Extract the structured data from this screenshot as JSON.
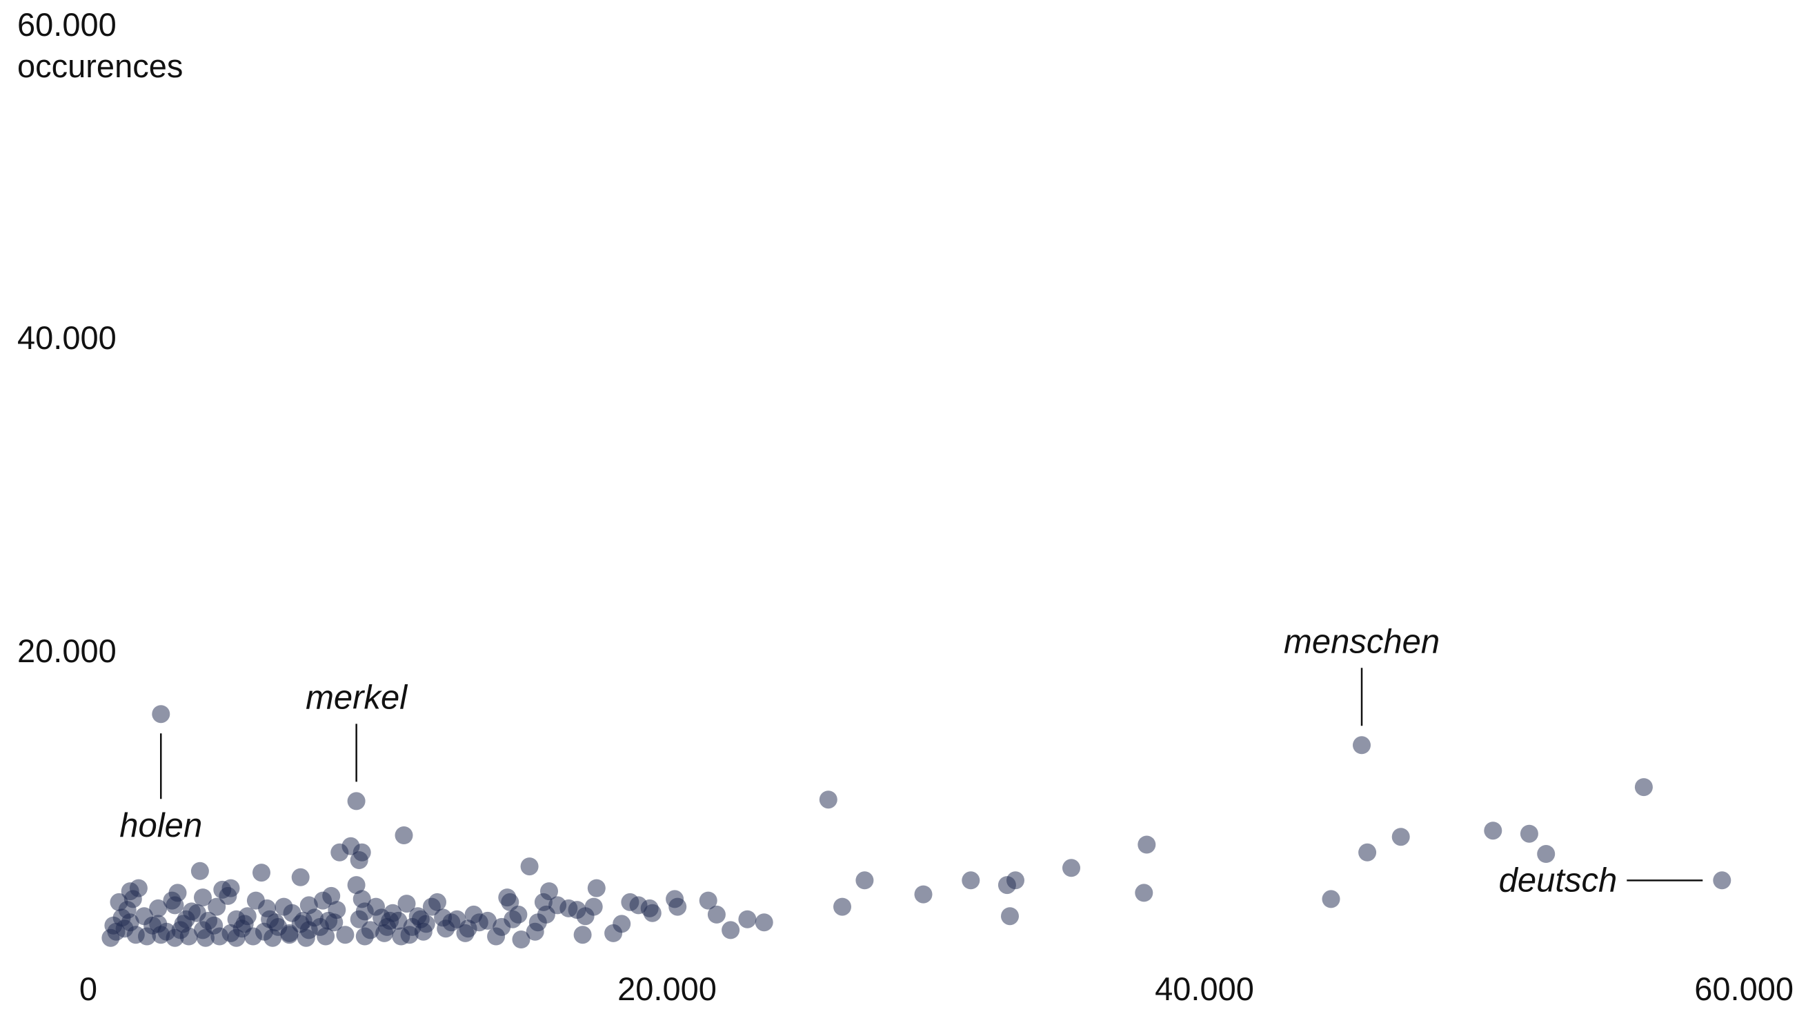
{
  "chart_data": {
    "type": "scatter",
    "title": "",
    "xlabel": "",
    "ylabel": "occurences",
    "xlim": [
      0,
      60000
    ],
    "ylim": [
      0,
      60000
    ],
    "x_ticks": [
      "0",
      "20.000",
      "40.000",
      "60.000"
    ],
    "y_ticks": [
      "20.000",
      "40.000",
      "60.000"
    ],
    "grid": false,
    "color": "#1f2a4f",
    "annotations": [
      {
        "label": "holen",
        "x": 2600,
        "y": 15700
      },
      {
        "label": "merkel",
        "x": 9600,
        "y": 10100
      },
      {
        "label": "menschen",
        "x": 45600,
        "y": 13700
      },
      {
        "label": "deutsch",
        "x": 58500,
        "y": 5000
      }
    ],
    "points": [
      [
        2600,
        15700
      ],
      [
        9600,
        10100
      ],
      [
        45600,
        13700
      ],
      [
        58500,
        5000
      ],
      [
        55700,
        11000
      ],
      [
        26500,
        10200
      ],
      [
        45800,
        6800
      ],
      [
        47000,
        7800
      ],
      [
        50300,
        8200
      ],
      [
        51600,
        8000
      ],
      [
        52200,
        6700
      ],
      [
        44500,
        3800
      ],
      [
        37900,
        7300
      ],
      [
        37800,
        4200
      ],
      [
        35200,
        5800
      ],
      [
        33200,
        5000
      ],
      [
        32900,
        4700
      ],
      [
        33000,
        2700
      ],
      [
        31600,
        5000
      ],
      [
        29900,
        4100
      ],
      [
        27800,
        5000
      ],
      [
        27000,
        3300
      ],
      [
        24200,
        2300
      ],
      [
        23600,
        2500
      ],
      [
        23000,
        1800
      ],
      [
        22200,
        3700
      ],
      [
        22500,
        2800
      ],
      [
        21000,
        3800
      ],
      [
        21100,
        3300
      ],
      [
        20100,
        3200
      ],
      [
        20200,
        2900
      ],
      [
        19400,
        3600
      ],
      [
        19700,
        3400
      ],
      [
        19100,
        2200
      ],
      [
        18800,
        1600
      ],
      [
        18200,
        4500
      ],
      [
        18100,
        3300
      ],
      [
        17800,
        2700
      ],
      [
        17500,
        3100
      ],
      [
        17700,
        1500
      ],
      [
        17200,
        3200
      ],
      [
        16500,
        4300
      ],
      [
        16300,
        3600
      ],
      [
        16400,
        2800
      ],
      [
        16800,
        3400
      ],
      [
        16100,
        2300
      ],
      [
        15800,
        5900
      ],
      [
        15400,
        2800
      ],
      [
        15100,
        3600
      ],
      [
        15000,
        3900
      ],
      [
        14800,
        2000
      ],
      [
        15500,
        1200
      ],
      [
        15200,
        2500
      ],
      [
        14300,
        2400
      ],
      [
        14000,
        2300
      ],
      [
        13800,
        2800
      ],
      [
        13600,
        1900
      ],
      [
        13200,
        2500
      ],
      [
        12700,
        2600
      ],
      [
        12300,
        3300
      ],
      [
        12100,
        2200
      ],
      [
        12500,
        3600
      ],
      [
        11800,
        2700
      ],
      [
        11600,
        2000
      ],
      [
        11400,
        3500
      ],
      [
        11100,
        2400
      ],
      [
        10900,
        2900
      ],
      [
        10700,
        2000
      ],
      [
        11300,
        7900
      ],
      [
        11500,
        1500
      ],
      [
        10500,
        2600
      ],
      [
        10300,
        3300
      ],
      [
        10100,
        1800
      ],
      [
        9900,
        3000
      ],
      [
        9700,
        6300
      ],
      [
        9800,
        6800
      ],
      [
        9600,
        4700
      ],
      [
        9800,
        3800
      ],
      [
        9400,
        7200
      ],
      [
        9000,
        6800
      ],
      [
        8900,
        3100
      ],
      [
        8700,
        4000
      ],
      [
        8600,
        2400
      ],
      [
        8300,
        2000
      ],
      [
        8100,
        2600
      ],
      [
        7900,
        1800
      ],
      [
        7600,
        2200
      ],
      [
        7300,
        2900
      ],
      [
        7200,
        1600
      ],
      [
        7600,
        5200
      ],
      [
        7900,
        3400
      ],
      [
        8400,
        3700
      ],
      [
        7000,
        3300
      ],
      [
        6800,
        2000
      ],
      [
        6500,
        2500
      ],
      [
        6300,
        1700
      ],
      [
        6200,
        5500
      ],
      [
        6400,
        3200
      ],
      [
        6000,
        3700
      ],
      [
        5700,
        2700
      ],
      [
        5500,
        1900
      ],
      [
        5300,
        2500
      ],
      [
        5100,
        1600
      ],
      [
        5000,
        4000
      ],
      [
        5100,
        4500
      ],
      [
        4800,
        4400
      ],
      [
        4600,
        3300
      ],
      [
        4300,
        2400
      ],
      [
        4100,
        1800
      ],
      [
        3900,
        2900
      ],
      [
        4000,
        5600
      ],
      [
        4100,
        3900
      ],
      [
        3700,
        3000
      ],
      [
        3500,
        2500
      ],
      [
        3300,
        1800
      ],
      [
        3100,
        3400
      ],
      [
        2800,
        1700
      ],
      [
        3200,
        4200
      ],
      [
        3000,
        3700
      ],
      [
        2500,
        3200
      ],
      [
        2300,
        2100
      ],
      [
        2000,
        2700
      ],
      [
        1800,
        4500
      ],
      [
        1600,
        3800
      ],
      [
        1500,
        4300
      ],
      [
        1400,
        3100
      ],
      [
        1200,
        2600
      ],
      [
        1100,
        3600
      ],
      [
        900,
        2100
      ],
      [
        800,
        1300
      ],
      [
        1000,
        1700
      ],
      [
        1300,
        1900
      ],
      [
        1700,
        1500
      ],
      [
        2100,
        1400
      ],
      [
        2600,
        1500
      ],
      [
        3100,
        1300
      ],
      [
        3600,
        1400
      ],
      [
        4200,
        1300
      ],
      [
        4700,
        1400
      ],
      [
        5300,
        1300
      ],
      [
        5900,
        1400
      ],
      [
        6600,
        1300
      ],
      [
        7200,
        1500
      ],
      [
        7800,
        1300
      ],
      [
        8500,
        1400
      ],
      [
        9200,
        1500
      ],
      [
        9900,
        1400
      ],
      [
        10600,
        1600
      ],
      [
        11200,
        1400
      ],
      [
        12000,
        1700
      ],
      [
        12800,
        1900
      ],
      [
        13500,
        1600
      ],
      [
        14600,
        1400
      ],
      [
        16000,
        1700
      ],
      [
        1500,
        2300
      ],
      [
        2500,
        2200
      ],
      [
        3400,
        2200
      ],
      [
        4500,
        2100
      ],
      [
        5600,
        2200
      ],
      [
        6700,
        2300
      ],
      [
        7700,
        2400
      ],
      [
        8800,
        2300
      ],
      [
        9700,
        2500
      ],
      [
        10800,
        2400
      ],
      [
        11900,
        2500
      ],
      [
        13000,
        2300
      ]
    ]
  }
}
